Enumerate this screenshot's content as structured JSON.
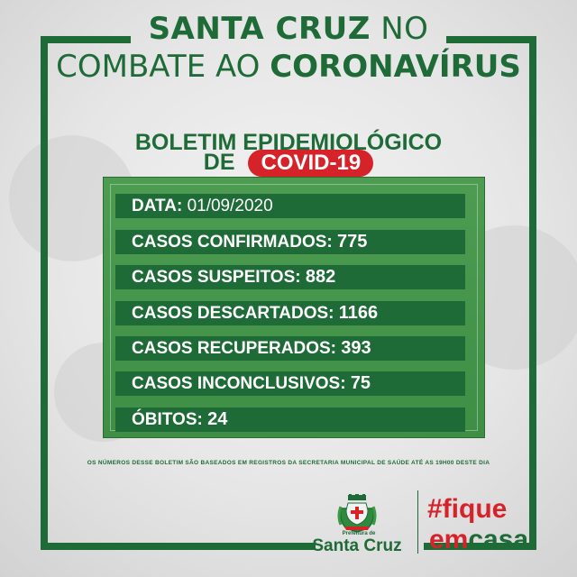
{
  "header": {
    "line1_bold": "SANTA CRUZ",
    "line1_light": "NO",
    "line2_light": "COMBATE AO",
    "line2_bold": "CORONAVÍRUS"
  },
  "bulletin": {
    "line1": "BOLETIM EPIDEMIOLÓGICO",
    "line2_prefix": "DE",
    "covid_label": "COVID-19"
  },
  "stats": {
    "date_label": "DATA:",
    "date_value": "01/09/2020",
    "rows": [
      {
        "label": "CASOS CONFIRMADOS:",
        "value": "775"
      },
      {
        "label": "CASOS SUSPEITOS:",
        "value": "882"
      },
      {
        "label": "CASOS DESCARTADOS:",
        "value": "1166"
      },
      {
        "label": "CASOS RECUPERADOS:",
        "value": "393"
      },
      {
        "label": "CASOS INCONCLUSIVOS:",
        "value": "75"
      },
      {
        "label": "ÓBITOS:",
        "value": "24"
      }
    ]
  },
  "footnote": "OS NÚMEROS DESSE BOLETIM SÃO BASEADOS EM REGISTROS DA SECRETARIA MUNICIPAL DE SAÚDE ATÉ AS 19H00 DESTE DIA",
  "logo": {
    "small_caption": "Prefeitura de",
    "caption": "Santa Cruz"
  },
  "slogan": {
    "line1": "#fique",
    "line2_em": "em",
    "line2_rest": "casa"
  },
  "colors": {
    "brand_green": "#1e6b37",
    "board_green": "#4d9c52",
    "accent_red": "#d6232a"
  }
}
